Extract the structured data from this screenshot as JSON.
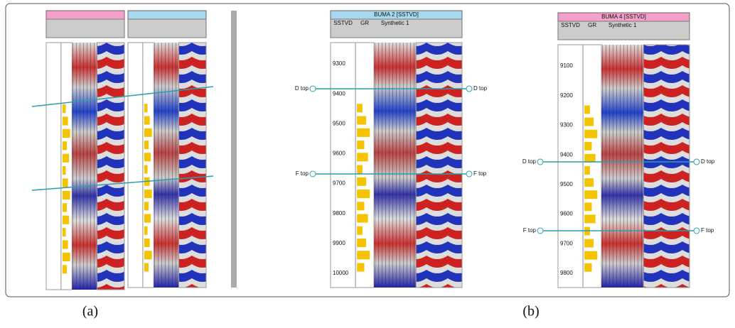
{
  "captions": [
    "(a)",
    "(b)"
  ],
  "panels": [
    {
      "title": "BUMA 2 [SSTVD]",
      "columns": [
        "SSTVD",
        "GR",
        "Synthetic 1"
      ],
      "depth_ticks": [
        "9300",
        "9400",
        "9500",
        "9600",
        "9700",
        "9800",
        "9900",
        "10000"
      ],
      "markers": [
        "D top",
        "F top"
      ]
    },
    {
      "title": "BUMA 4 [SSTVD]",
      "columns": [
        "SSTVD",
        "GR",
        "Synthetic 1"
      ],
      "depth_ticks": [
        "9100",
        "9200",
        "9300",
        "9400",
        "9500",
        "9600",
        "9700",
        "9800"
      ],
      "markers": [
        "D top",
        "F top"
      ]
    }
  ]
}
